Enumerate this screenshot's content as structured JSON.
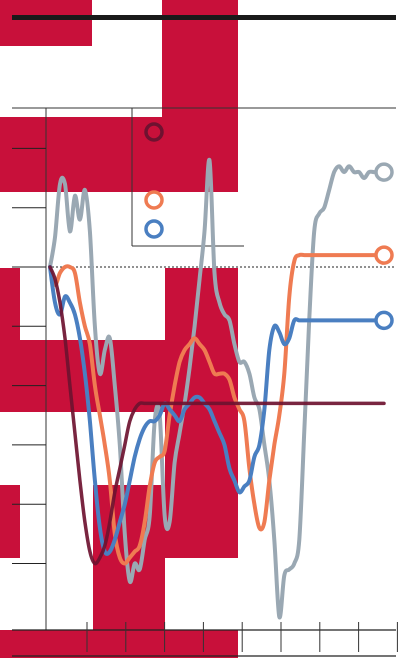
{
  "colors": {
    "background_block": "#c8103a",
    "grid": "#000000",
    "series_dark": "#6e1230",
    "series_orange": "#ef7b52",
    "series_blue": "#4a7fc1",
    "series_gray": "#9aa8b3"
  },
  "chart_data": {
    "type": "line",
    "title": "",
    "xlabel": "",
    "ylabel": "",
    "x": [
      0,
      1,
      2,
      3,
      4,
      5,
      6,
      7,
      8,
      9,
      10,
      11,
      12,
      13,
      14,
      15,
      16,
      17,
      18,
      19,
      20,
      21,
      22,
      23,
      24,
      25,
      26,
      27,
      28,
      29,
      30,
      31,
      32,
      33,
      34,
      35,
      36,
      37,
      38,
      39,
      40,
      41,
      42,
      43,
      44,
      45,
      46,
      47,
      48,
      49,
      50,
      51,
      52,
      53,
      54,
      55,
      56,
      57,
      58,
      59,
      60,
      61,
      62,
      63,
      64,
      65,
      66,
      67
    ],
    "xlim": [
      0,
      67
    ],
    "ylim": [
      -5,
      6
    ],
    "reference_y": 0,
    "y_ticks": [
      -5,
      -4,
      -3,
      -2,
      -1,
      0,
      1,
      2
    ],
    "x_tick_count": 9,
    "legend": {
      "placement": "top-left",
      "entries": [
        {
          "series": "dark",
          "label": ""
        },
        {
          "series": "orange",
          "label": ""
        },
        {
          "series": "blue",
          "label": ""
        }
      ]
    },
    "series": [
      {
        "key": "gray",
        "values": [
          0.0,
          0.5,
          1.4,
          1.4,
          0.6,
          1.2,
          0.8,
          1.3,
          0.6,
          -1.0,
          -1.8,
          -1.4,
          -1.2,
          -2.0,
          -3.0,
          -4.5,
          -5.3,
          -5.0,
          -5.1,
          -4.6,
          -4.2,
          -2.6,
          -2.5,
          -4.2,
          -4.3,
          -3.3,
          -2.8,
          -2.3,
          -1.7,
          -1.0,
          -0.2,
          0.6,
          1.8,
          -0.1,
          -0.6,
          -0.8,
          -0.9,
          -1.3,
          -1.6,
          -1.6,
          -1.8,
          -2.2,
          -2.4,
          -3.0,
          -3.6,
          -4.6,
          -5.9,
          -5.2,
          -5.1,
          -5.0,
          -4.6,
          -2.8,
          -0.9,
          0.6,
          0.9,
          1.0,
          1.3,
          1.6,
          1.7,
          1.6,
          1.7,
          1.6,
          1.6,
          1.5,
          1.6,
          1.6,
          1.6,
          1.6
        ]
      },
      {
        "key": "orange",
        "values": [
          0.0,
          -0.3,
          -0.1,
          0.0,
          0.0,
          -0.1,
          -0.6,
          -1.0,
          -1.3,
          -2.0,
          -2.5,
          -3.0,
          -3.6,
          -4.5,
          -4.9,
          -5.0,
          -4.9,
          -4.8,
          -4.7,
          -4.3,
          -3.7,
          -3.3,
          -3.2,
          -3.1,
          -2.5,
          -2.0,
          -1.6,
          -1.4,
          -1.3,
          -1.2,
          -1.3,
          -1.4,
          -1.6,
          -1.8,
          -1.8,
          -1.8,
          -1.9,
          -2.2,
          -2.4,
          -2.6,
          -3.4,
          -4.0,
          -4.4,
          -4.3,
          -3.6,
          -3.0,
          -2.5,
          -1.8,
          -0.5,
          0.1,
          0.2,
          0.2,
          0.2,
          0.2,
          0.2,
          0.2,
          0.2,
          0.2,
          0.2,
          0.2,
          0.2,
          0.2,
          0.2,
          0.2,
          0.2,
          0.2,
          0.2,
          0.2
        ]
      },
      {
        "key": "blue",
        "values": [
          0.0,
          -0.6,
          -0.8,
          -0.5,
          -0.6,
          -0.8,
          -1.2,
          -1.8,
          -2.6,
          -3.6,
          -4.4,
          -4.8,
          -4.8,
          -4.6,
          -4.3,
          -4.0,
          -3.6,
          -3.2,
          -2.9,
          -2.7,
          -2.6,
          -2.6,
          -2.5,
          -2.3,
          -2.4,
          -2.5,
          -2.6,
          -2.4,
          -2.3,
          -2.2,
          -2.2,
          -2.3,
          -2.4,
          -2.6,
          -2.8,
          -3.0,
          -3.4,
          -3.6,
          -3.8,
          -3.7,
          -3.6,
          -3.2,
          -3.0,
          -2.4,
          -1.4,
          -1.0,
          -1.1,
          -1.3,
          -1.2,
          -0.9,
          -0.9,
          -0.9,
          -0.9,
          -0.9,
          -0.9,
          -0.9,
          -0.9,
          -0.9,
          -0.9,
          -0.9,
          -0.9,
          -0.9,
          -0.9,
          -0.9,
          -0.9,
          -0.9,
          -0.9,
          -0.9
        ]
      },
      {
        "key": "dark",
        "values": [
          0.0,
          -0.2,
          -0.6,
          -1.2,
          -2.0,
          -2.8,
          -3.6,
          -4.3,
          -4.8,
          -5.0,
          -4.9,
          -4.7,
          -4.3,
          -3.8,
          -3.4,
          -3.0,
          -2.6,
          -2.4,
          -2.3,
          -2.3,
          -2.3,
          -2.3,
          -2.3,
          -2.3,
          -2.3,
          -2.3,
          -2.3,
          -2.3,
          -2.3,
          -2.3,
          -2.3,
          -2.3,
          -2.3,
          -2.3,
          -2.3,
          -2.3,
          -2.3,
          -2.3,
          -2.3,
          -2.3,
          -2.3,
          -2.3,
          -2.3,
          -2.3,
          -2.3,
          -2.3,
          -2.3,
          -2.3,
          -2.3,
          -2.3,
          -2.3,
          -2.3,
          -2.3,
          -2.3,
          -2.3,
          -2.3,
          -2.3,
          -2.3,
          -2.3,
          -2.3,
          -2.3,
          -2.3,
          -2.3,
          -2.3,
          -2.3,
          -2.3,
          -2.3,
          -2.3
        ]
      }
    ]
  }
}
